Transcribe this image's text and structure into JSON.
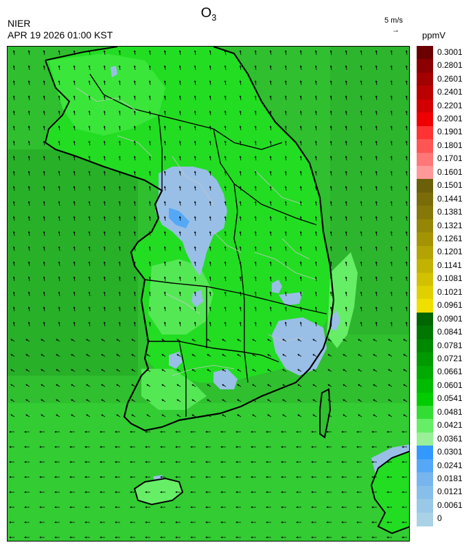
{
  "header": {
    "agency": "NIER",
    "timestamp": "APR 19 2026 01:00 KST",
    "species": "O",
    "species_sub": "3",
    "wind_scale_label": "5 m/s",
    "wind_scale_arrow": "→",
    "units": "ppmV"
  },
  "legend": {
    "labels": [
      "0.3001",
      "0.2801",
      "0.2601",
      "0.2401",
      "0.2201",
      "0.2001",
      "0.1901",
      "0.1801",
      "0.1701",
      "0.1601",
      "0.1501",
      "0.1441",
      "0.1381",
      "0.1321",
      "0.1261",
      "0.1201",
      "0.1141",
      "0.1081",
      "0.1021",
      "0.0961",
      "0.0901",
      "0.0841",
      "0.0781",
      "0.0721",
      "0.0661",
      "0.0601",
      "0.0541",
      "0.0481",
      "0.0421",
      "0.0361",
      "0.0301",
      "0.0241",
      "0.0181",
      "0.0121",
      "0.0061",
      "0"
    ],
    "colors": [
      "#6b0000",
      "#8b0000",
      "#a30000",
      "#bb0000",
      "#d20000",
      "#ee0000",
      "#ff3333",
      "#ff5555",
      "#ff7777",
      "#ff9999",
      "#6b5f0a",
      "#7a6c08",
      "#867808",
      "#958606",
      "#a49404",
      "#b3a303",
      "#c2b202",
      "#d1c101",
      "#e0d000",
      "#efe000",
      "#006600",
      "#007700",
      "#008800",
      "#009900",
      "#00aa00",
      "#00bb00",
      "#00cc00",
      "#33dd33",
      "#66ee66",
      "#99f099",
      "#3399ff",
      "#55a8f5",
      "#77b5ee",
      "#88bfea",
      "#99c9e6",
      "#aad2e6"
    ]
  },
  "map": {
    "colors": {
      "sea": "#2eb82e",
      "sea_light": "#33cc33",
      "land_green": "#22dd22",
      "land_light": "#66ee66",
      "low_blue": "#99bfe6",
      "mid_blue": "#55a8f5",
      "coast": "#000000",
      "admin": "#c8c8c8"
    },
    "wind_vectors": "uniform-grid-arrows",
    "coastline": "korean-peninsula-coastline"
  }
}
